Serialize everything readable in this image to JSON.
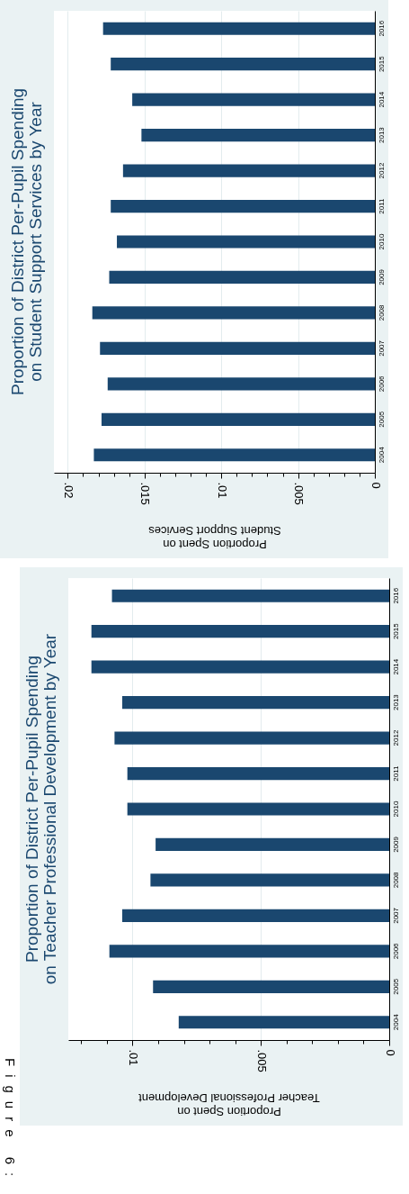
{
  "chart_data": [
    {
      "type": "bar",
      "orientation": "horizontal",
      "title": "Proportion of District Per-Pupil Spending\non Student Support Services by Year",
      "xlabel": "Proportion Spent on\nStudent Support Services",
      "categories": [
        "2016",
        "2015",
        "2014",
        "2013",
        "2012",
        "2011",
        "2010",
        "2009",
        "2008",
        "2007",
        "2006",
        "2005",
        "2004"
      ],
      "values": [
        0.0177,
        0.0172,
        0.0158,
        0.0152,
        0.0164,
        0.0172,
        0.0168,
        0.0173,
        0.0184,
        0.0179,
        0.0174,
        0.0178,
        0.0183
      ],
      "color": "#1a476f",
      "xlim": [
        0.0209,
        0
      ],
      "xticks": [
        0,
        {
          "value": 0.001,
          "label": null
        },
        {
          "value": 0.002,
          "label": null
        },
        {
          "value": 0.003,
          "label": null
        },
        {
          "value": 0.004,
          "label": null
        },
        {
          "value": 0.005,
          "label": ".005"
        },
        {
          "value": 0.006,
          "label": null
        },
        {
          "value": 0.007,
          "label": null
        },
        {
          "value": 0.008,
          "label": null
        },
        {
          "value": 0.009,
          "label": null
        },
        {
          "value": 0.01,
          "label": ".01"
        },
        {
          "value": 0.011,
          "label": null
        },
        {
          "value": 0.012,
          "label": null
        },
        {
          "value": 0.013,
          "label": null
        },
        {
          "value": 0.014,
          "label": null
        },
        {
          "value": 0.015,
          "label": ".015"
        },
        {
          "value": 0.016,
          "label": null
        },
        {
          "value": 0.017,
          "label": null
        },
        {
          "value": 0.018,
          "label": null
        },
        {
          "value": 0.019,
          "label": null
        },
        {
          "value": 0.02,
          "label": ".02"
        }
      ],
      "grid": "x"
    },
    {
      "type": "bar",
      "orientation": "horizontal",
      "title": "Proportion of District Per-Pupil Spending\non Teacher Professional Development by Year",
      "xlabel": "Proportion Spent on\nTeacher Professional Development",
      "annotations": [
        "Figure 6:"
      ],
      "categories": [
        "2016",
        "2015",
        "2014",
        "2013",
        "2012",
        "2011",
        "2010",
        "2009",
        "2008",
        "2007",
        "2006",
        "2005",
        "2004"
      ],
      "values": [
        0.0108,
        0.0116,
        0.0116,
        0.0104,
        0.0107,
        0.0102,
        0.0102,
        0.0091,
        0.0093,
        0.0104,
        0.0109,
        0.0092,
        0.0082
      ],
      "color": "#1a476f",
      "xlim": [
        0.0125,
        0
      ],
      "xticks": [
        0,
        {
          "value": 0.001,
          "label": null
        },
        {
          "value": 0.002,
          "label": null
        },
        {
          "value": 0.003,
          "label": null
        },
        {
          "value": 0.004,
          "label": null
        },
        {
          "value": 0.005,
          "label": ".005"
        },
        {
          "value": 0.006,
          "label": null
        },
        {
          "value": 0.007,
          "label": null
        },
        {
          "value": 0.008,
          "label": null
        },
        {
          "value": 0.009,
          "label": null
        },
        {
          "value": 0.01,
          "label": ".01"
        },
        {
          "value": 0.011,
          "label": null
        },
        {
          "value": 0.012,
          "label": null
        }
      ],
      "grid": "x"
    }
  ]
}
